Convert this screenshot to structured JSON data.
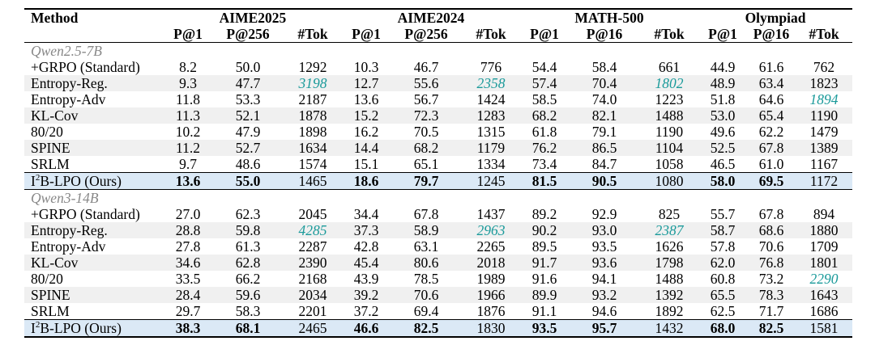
{
  "header": {
    "method_label": "Method",
    "groups": [
      "AIME2025",
      "AIME2024",
      "MATH-500",
      "Olympiad"
    ],
    "sub_columns": [
      [
        "P@1",
        "P@256",
        "#Tok"
      ],
      [
        "P@1",
        "P@256",
        "#Tok"
      ],
      [
        "P@1",
        "P@16",
        "#Tok"
      ],
      [
        "P@1",
        "P@16",
        "#Tok"
      ]
    ]
  },
  "sections": [
    {
      "model": "Qwen2.5-7B",
      "rows": [
        {
          "method": "+GRPO (Standard)",
          "values": [
            "8.2",
            "50.0",
            "1292",
            "10.3",
            "46.7",
            "776",
            "54.4",
            "58.4",
            "661",
            "44.9",
            "61.6",
            "762"
          ],
          "bold": [],
          "teal": []
        },
        {
          "method": "Entropy-Reg.",
          "values": [
            "9.3",
            "47.7",
            "3198",
            "12.7",
            "55.6",
            "2358",
            "57.4",
            "70.4",
            "1802",
            "48.9",
            "63.4",
            "1823"
          ],
          "bold": [],
          "teal": [
            2,
            5,
            8
          ]
        },
        {
          "method": "Entropy-Adv",
          "values": [
            "11.8",
            "53.3",
            "2187",
            "13.6",
            "56.7",
            "1424",
            "58.5",
            "74.0",
            "1223",
            "51.8",
            "64.6",
            "1894"
          ],
          "bold": [],
          "teal": [
            11
          ]
        },
        {
          "method": "KL-Cov",
          "values": [
            "11.3",
            "52.1",
            "1878",
            "15.2",
            "72.3",
            "1283",
            "68.2",
            "82.1",
            "1488",
            "53.0",
            "65.4",
            "1190"
          ],
          "bold": [],
          "teal": []
        },
        {
          "method": "80/20",
          "values": [
            "10.2",
            "47.9",
            "1898",
            "16.2",
            "70.5",
            "1315",
            "61.8",
            "79.1",
            "1190",
            "49.6",
            "62.2",
            "1479"
          ],
          "bold": [],
          "teal": []
        },
        {
          "method": "SPINE",
          "values": [
            "11.2",
            "52.7",
            "1634",
            "14.4",
            "68.2",
            "1179",
            "76.2",
            "86.5",
            "1104",
            "52.5",
            "67.8",
            "1389"
          ],
          "bold": [],
          "teal": []
        },
        {
          "method": "SRLM",
          "values": [
            "9.7",
            "48.6",
            "1574",
            "15.1",
            "65.1",
            "1334",
            "73.4",
            "84.7",
            "1058",
            "46.5",
            "61.0",
            "1167"
          ],
          "bold": [],
          "teal": []
        }
      ],
      "ours": {
        "method_prefix": "I",
        "method_sup": "2",
        "method_suffix": "B-LPO (Ours)",
        "values": [
          "13.6",
          "55.0",
          "1465",
          "18.6",
          "79.7",
          "1245",
          "81.5",
          "90.5",
          "1080",
          "58.0",
          "69.5",
          "1172"
        ],
        "bold": [
          0,
          1,
          3,
          4,
          6,
          7,
          9,
          10
        ]
      }
    },
    {
      "model": "Qwen3-14B",
      "rows": [
        {
          "method": "+GRPO (Standard)",
          "values": [
            "27.0",
            "62.3",
            "2045",
            "34.4",
            "67.8",
            "1437",
            "89.2",
            "92.9",
            "825",
            "55.7",
            "67.8",
            "894"
          ],
          "bold": [],
          "teal": []
        },
        {
          "method": "Entropy-Reg.",
          "values": [
            "28.8",
            "59.8",
            "4285",
            "37.3",
            "58.9",
            "2963",
            "90.2",
            "93.0",
            "2387",
            "58.7",
            "68.6",
            "1880"
          ],
          "bold": [],
          "teal": [
            2,
            5,
            8
          ]
        },
        {
          "method": "Entropy-Adv",
          "values": [
            "27.8",
            "61.3",
            "2287",
            "42.8",
            "63.1",
            "2265",
            "89.5",
            "93.5",
            "1626",
            "57.8",
            "70.6",
            "1709"
          ],
          "bold": [],
          "teal": []
        },
        {
          "method": "KL-Cov",
          "values": [
            "34.6",
            "62.8",
            "2390",
            "45.4",
            "80.6",
            "2018",
            "91.7",
            "93.6",
            "1798",
            "62.0",
            "76.8",
            "1801"
          ],
          "bold": [],
          "teal": []
        },
        {
          "method": "80/20",
          "values": [
            "33.5",
            "66.2",
            "2168",
            "43.9",
            "78.5",
            "1989",
            "91.6",
            "94.1",
            "1488",
            "60.8",
            "73.2",
            "2290"
          ],
          "bold": [],
          "teal": [
            11
          ]
        },
        {
          "method": "SPINE",
          "values": [
            "28.4",
            "59.6",
            "2034",
            "39.2",
            "70.6",
            "1966",
            "89.9",
            "93.2",
            "1392",
            "65.5",
            "78.3",
            "1643"
          ],
          "bold": [],
          "teal": []
        },
        {
          "method": "SRLM",
          "values": [
            "29.7",
            "58.3",
            "2201",
            "37.2",
            "69.4",
            "1876",
            "91.1",
            "94.6",
            "1892",
            "62.5",
            "71.7",
            "1686"
          ],
          "bold": [],
          "teal": []
        }
      ],
      "ours": {
        "method_prefix": "I",
        "method_sup": "2",
        "method_suffix": "B-LPO (Ours)",
        "values": [
          "38.3",
          "68.1",
          "2465",
          "46.6",
          "82.5",
          "1830",
          "93.5",
          "95.7",
          "1432",
          "68.0",
          "82.5",
          "1581"
        ],
        "bold": [
          0,
          1,
          3,
          4,
          6,
          7,
          9,
          10
        ]
      }
    }
  ],
  "colors": {
    "teal": "#1a9a9a",
    "ours_bg": "#dbe9f6",
    "shade_bg": "#f0f0f0",
    "model_label": "#888888"
  }
}
